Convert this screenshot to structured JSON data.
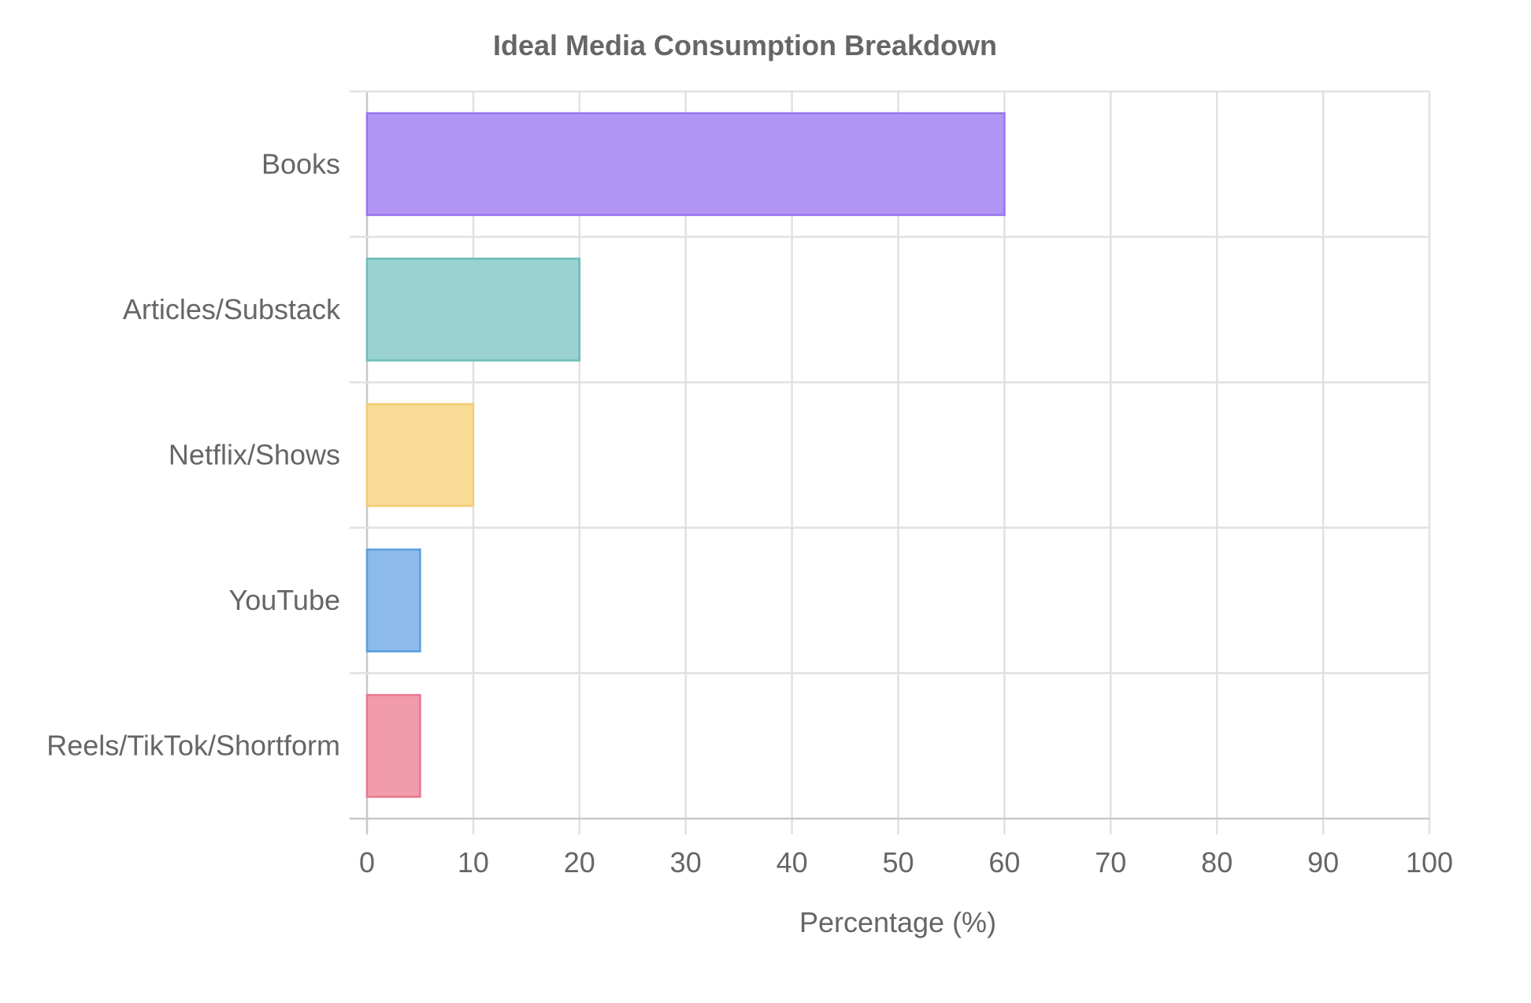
{
  "chart_data": {
    "type": "bar",
    "orientation": "horizontal",
    "title": "Ideal Media Consumption Breakdown",
    "xlabel": "Percentage (%)",
    "ylabel": "",
    "xlim": [
      0,
      100
    ],
    "x_ticks": [
      "0",
      "10",
      "20",
      "30",
      "40",
      "50",
      "60",
      "70",
      "80",
      "90",
      "100"
    ],
    "grid": true,
    "legend": "none",
    "categories": [
      "Books",
      "Articles/Substack",
      "Netflix/Shows",
      "YouTube",
      "Reels/TikTok/Shortform"
    ],
    "values": [
      60,
      20,
      10,
      5,
      5
    ],
    "colors": {
      "fill": [
        "#b095f5",
        "#9ad2d2",
        "#f8dc96",
        "#8bbaeb",
        "#f29bab"
      ],
      "border": [
        "#9a73ee",
        "#6bbdb9",
        "#f2cc72",
        "#5a9de2",
        "#e8778e"
      ]
    }
  }
}
